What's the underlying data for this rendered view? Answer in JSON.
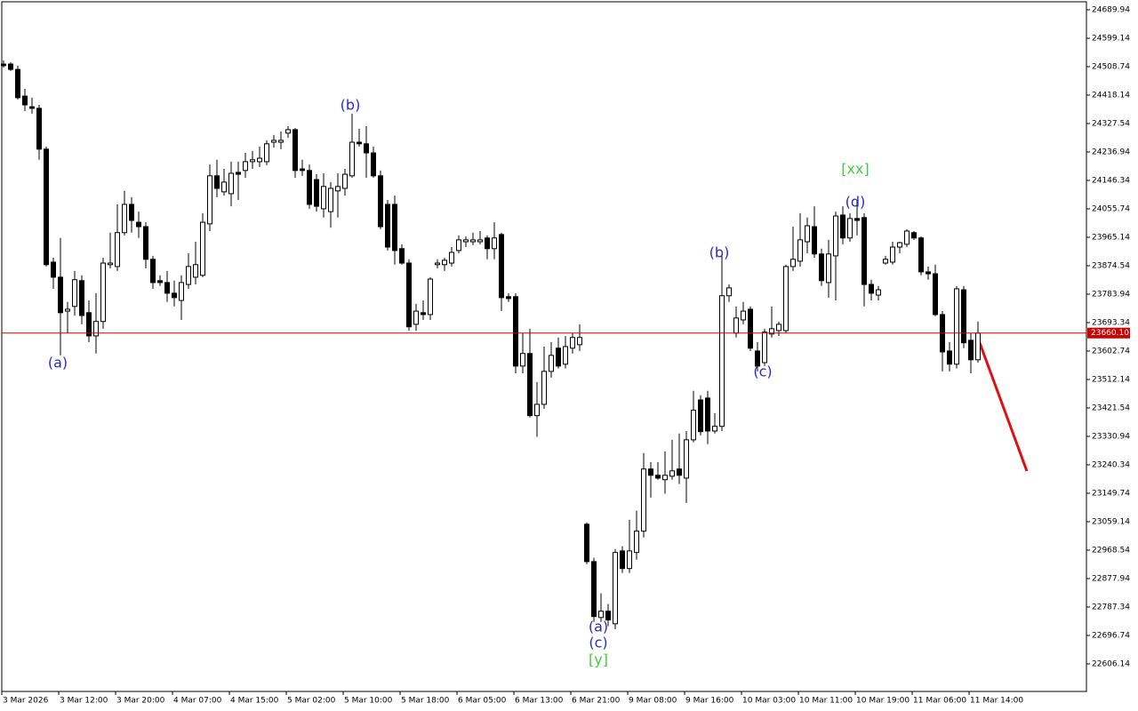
{
  "chart_data": {
    "type": "candlestick",
    "categories": [
      "3 Mar 2026",
      null,
      null,
      null,
      null,
      null,
      null,
      null,
      "3 Mar 12:00",
      null,
      null,
      null,
      null,
      null,
      null,
      null,
      "3 Mar 20:00",
      null,
      null,
      null,
      null,
      null,
      null,
      null,
      "4 Mar 07:00",
      null,
      null,
      null,
      null,
      null,
      null,
      null,
      "4 Mar 15:00",
      null,
      null,
      null,
      null,
      null,
      null,
      null,
      "5 Mar 02:00",
      null,
      null,
      null,
      null,
      null,
      null,
      null,
      "5 Mar 10:00",
      null,
      null,
      null,
      null,
      null,
      null,
      null,
      "5 Mar 18:00",
      null,
      null,
      null,
      null,
      null,
      null,
      null,
      "6 Mar 05:00",
      null,
      null,
      null,
      null,
      null,
      null,
      null,
      "6 Mar 13:00",
      null,
      null,
      null,
      null,
      null,
      null,
      null,
      "6 Mar 21:00",
      null,
      null,
      null,
      null,
      null,
      null,
      null,
      "9 Mar 08:00",
      null,
      null,
      null,
      null,
      null,
      null,
      null,
      "9 Mar 16:00",
      null,
      null,
      null,
      null,
      null,
      null,
      null,
      "10 Mar 03:00",
      null,
      null,
      null,
      null,
      null,
      null,
      null,
      "10 Mar 11:00",
      null,
      null,
      null,
      null,
      null,
      null,
      null,
      "10 Mar 19:00",
      null,
      null,
      null,
      null,
      null,
      null,
      null,
      "11 Mar 06:00",
      null,
      null,
      null,
      null,
      null,
      null,
      null,
      "11 Mar 14:00",
      null
    ],
    "open": [
      24517,
      24517,
      24500,
      24415,
      24381,
      24376,
      24246,
      23886,
      23838,
      23730,
      23745,
      23827,
      23725,
      23651,
      23697,
      23878,
      23872,
      23980,
      24070,
      24013,
      23999,
      23895,
      23827,
      23821,
      23787,
      23764,
      23815,
      23838,
      23844,
      24008,
      24161,
      24110,
      24104,
      24172,
      24178,
      24206,
      24206,
      24206,
      24268,
      24268,
      24297,
      24308,
      24183,
      24178,
      24149,
      24056,
      24047,
      24113,
      24121,
      24161,
      24268,
      24263,
      24234,
      24161,
      24070,
      24070,
      23929,
      23883,
      23688,
      23725,
      23719,
      23878,
      23878,
      23883,
      23923,
      23951,
      23951,
      23951,
      23963,
      23929,
      23974,
      23776,
      23776,
      23555,
      23595,
      23397,
      23433,
      23538,
      23612,
      23561,
      23612,
      23623,
      23051,
      22932,
      22754,
      22774,
      22734,
      22966,
      22910,
      22961,
      23029,
      23227,
      23207,
      23193,
      23204,
      23227,
      23198,
      23320,
      23447,
      23453,
      23348,
      23363,
      23779,
      23660,
      23702,
      23736,
      23603,
      23566,
      23657,
      23668,
      23668,
      23872,
      23889,
      23951,
      23999,
      23912,
      23821,
      23906,
      24036,
      23963,
      24025,
      24028,
      23815,
      23781,
      23883,
      23886,
      23934,
      23943,
      23980,
      23963,
      23855,
      23849,
      23719,
      23603,
      23561,
      23798,
      23637,
      23575
    ],
    "high": [
      24529,
      24523,
      24512,
      24438,
      24410,
      24387,
      24254,
      23900,
      23963,
      23759,
      23858,
      23844,
      23764,
      23787,
      23900,
      23980,
      24070,
      24113,
      24093,
      24047,
      24013,
      23906,
      23844,
      23858,
      23827,
      23844,
      23914,
      23951,
      24042,
      24197,
      24212,
      24183,
      24206,
      24206,
      24234,
      24240,
      24254,
      24274,
      24291,
      24302,
      24319,
      24313,
      24212,
      24197,
      24166,
      24169,
      24141,
      24169,
      24183,
      24359,
      24311,
      24319,
      24254,
      24178,
      24084,
      24098,
      23943,
      23895,
      23753,
      23764,
      23838,
      23895,
      23900,
      23934,
      23971,
      23968,
      23980,
      23985,
      23971,
      24013,
      23980,
      23787,
      23787,
      23660,
      23674,
      23504,
      23617,
      23631,
      23646,
      23651,
      23660,
      23688,
      23057,
      22944,
      22831,
      22797,
      22972,
      22981,
      23065,
      23094,
      23278,
      23249,
      23249,
      23283,
      23320,
      23340,
      23348,
      23476,
      23462,
      23476,
      23405,
      23906,
      23815,
      23745,
      23759,
      23745,
      23631,
      23674,
      23745,
      23697,
      23878,
      23999,
      24042,
      24028,
      24064,
      23929,
      23957,
      24047,
      24064,
      24042,
      24084,
      24042,
      23830,
      23810,
      23906,
      23951,
      23951,
      23991,
      23985,
      23968,
      23872,
      23878,
      23730,
      23631,
      23810,
      23810,
      23660,
      23697
    ],
    "low": [
      24506,
      24495,
      24404,
      24367,
      24359,
      24212,
      23872,
      23801,
      23589,
      23660,
      23716,
      23688,
      23631,
      23595,
      23674,
      23866,
      23858,
      23971,
      23980,
      23963,
      23866,
      23801,
      23810,
      23759,
      23745,
      23702,
      23801,
      23815,
      23838,
      23985,
      24093,
      24098,
      24064,
      24084,
      24155,
      24183,
      24189,
      24195,
      24251,
      24246,
      24282,
      24155,
      24161,
      24056,
      24047,
      24028,
      23996,
      24028,
      24098,
      24155,
      24254,
      24155,
      24155,
      23991,
      23923,
      23878,
      23878,
      23668,
      23668,
      23702,
      23702,
      23866,
      23858,
      23872,
      23914,
      23934,
      23940,
      23943,
      23895,
      23895,
      23730,
      23759,
      23532,
      23532,
      23391,
      23329,
      23419,
      23518,
      23547,
      23547,
      23595,
      23603,
      22924,
      22740,
      22740,
      22726,
      22717,
      22896,
      22896,
      22938,
      23009,
      23136,
      23193,
      23148,
      23193,
      23179,
      23119,
      23312,
      23334,
      23306,
      23340,
      23348,
      23759,
      23646,
      23688,
      23603,
      23538,
      23555,
      23646,
      23651,
      23660,
      23858,
      23872,
      23914,
      23900,
      23810,
      23773,
      23764,
      23943,
      23951,
      23971,
      23745,
      23764,
      23764,
      23878,
      23878,
      23914,
      23934,
      23957,
      23844,
      23830,
      23714,
      23538,
      23538,
      23547,
      23612,
      23532,
      23566
    ],
    "close": [
      24512,
      24500,
      24410,
      24387,
      24376,
      24246,
      23878,
      23838,
      23725,
      23736,
      23830,
      23716,
      23651,
      23697,
      23883,
      23883,
      23980,
      24070,
      24019,
      23999,
      23895,
      23821,
      23821,
      23787,
      23773,
      23821,
      23872,
      23878,
      24013,
      24161,
      24121,
      24141,
      24169,
      24166,
      24206,
      24212,
      24217,
      24263,
      24274,
      24274,
      24308,
      24178,
      24178,
      24070,
      24064,
      24127,
      24121,
      24127,
      24166,
      24268,
      24263,
      24234,
      24161,
      23999,
      23934,
      23923,
      23883,
      23680,
      23730,
      23719,
      23832,
      23883,
      23892,
      23917,
      23957,
      23957,
      23957,
      23957,
      23929,
      23963,
      23773,
      23770,
      23555,
      23595,
      23397,
      23433,
      23538,
      23589,
      23555,
      23617,
      23646,
      23646,
      22932,
      22757,
      22774,
      22746,
      22961,
      22910,
      22966,
      23029,
      23227,
      23207,
      23198,
      23207,
      23221,
      23207,
      23320,
      23414,
      23346,
      23348,
      23363,
      23779,
      23804,
      23708,
      23730,
      23612,
      23555,
      23663,
      23674,
      23688,
      23872,
      23895,
      23957,
      24002,
      23912,
      23827,
      23912,
      24033,
      23963,
      24025,
      24019,
      23815,
      23787,
      23798,
      23895,
      23934,
      23948,
      23985,
      23963,
      23855,
      23849,
      23719,
      23600,
      23561,
      23801,
      23629,
      23575,
      23660
    ],
    "up_color": "#ffffff",
    "down_color": "#000000",
    "ylim": [
      22518.37,
      24715.42
    ],
    "yticks": [
      {
        "value": 24689.94,
        "label": "24689.94"
      },
      {
        "value": 24599.14,
        "label": "24599.14"
      },
      {
        "value": 24508.74,
        "label": "24508.74"
      },
      {
        "value": 24418.14,
        "label": "24418.14"
      },
      {
        "value": 24327.54,
        "label": "24327.54"
      },
      {
        "value": 24236.94,
        "label": "24236.94"
      },
      {
        "value": 24146.34,
        "label": "24146.34"
      },
      {
        "value": 24055.74,
        "label": "24055.74"
      },
      {
        "value": 23965.14,
        "label": "23965.14"
      },
      {
        "value": 23874.54,
        "label": "23874.54"
      },
      {
        "value": 23783.94,
        "label": "23783.94"
      },
      {
        "value": 23693.34,
        "label": "23693.34"
      },
      {
        "value": 23602.74,
        "label": "23602.74"
      },
      {
        "value": 23512.14,
        "label": "23512.14"
      },
      {
        "value": 23421.54,
        "label": "23421.54"
      },
      {
        "value": 23330.94,
        "label": "23330.94"
      },
      {
        "value": 23240.34,
        "label": "23240.34"
      },
      {
        "value": 23149.74,
        "label": "23149.74"
      },
      {
        "value": 23059.14,
        "label": "23059.14"
      },
      {
        "value": 22968.54,
        "label": "22968.54"
      },
      {
        "value": 22877.94,
        "label": "22877.94"
      },
      {
        "value": 22787.34,
        "label": "22787.34"
      },
      {
        "value": 22696.74,
        "label": "22696.74"
      },
      {
        "value": 22606.14,
        "label": "22606.14"
      }
    ],
    "current_price": {
      "value": 23660.1,
      "label": "23660.10",
      "color": "#cc0000"
    },
    "grid": false,
    "annotations": [
      {
        "text": "(a)",
        "color": "#2a2ad0"
      },
      {
        "text": "(b)",
        "color": "#2a2ad0"
      },
      {
        "text": "(a)",
        "color": "#2a2ad0"
      },
      {
        "text": "(c)",
        "color": "#2a2ad0"
      },
      {
        "text": "[y]",
        "color": "#44cc44"
      },
      {
        "text": "(b)",
        "color": "#2a2ad0"
      },
      {
        "text": "(c)",
        "color": "#2a2ad0"
      },
      {
        "text": "[xx]",
        "color": "#44cc44"
      },
      {
        "text": "(d)",
        "color": "#2a2ad0"
      }
    ]
  }
}
